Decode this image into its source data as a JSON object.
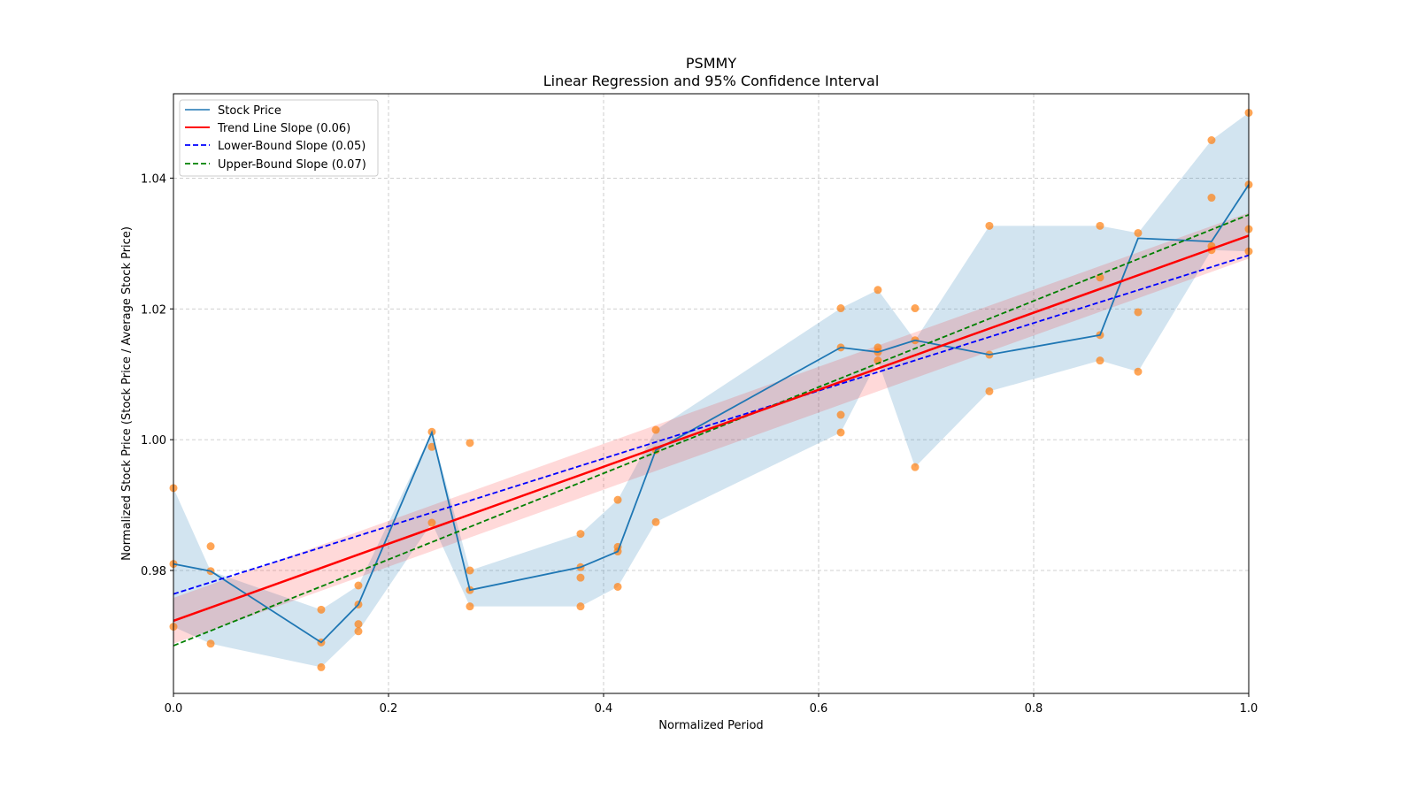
{
  "chart_data": {
    "type": "line",
    "title": "PSMMY",
    "subtitle": "Linear Regression and 95% Confidence Interval",
    "xlabel": "Normalized Period",
    "ylabel": "Normalized Stock Price (Stock Price / Average Stock Price)",
    "xlim": [
      0.0,
      1.0
    ],
    "ylim": [
      0.9612,
      1.0529
    ],
    "xticks": [
      0.0,
      0.2,
      0.4,
      0.6,
      0.8,
      1.0
    ],
    "xtick_labels": [
      "0.0",
      "0.2",
      "0.4",
      "0.6",
      "0.8",
      "1.0"
    ],
    "yticks": [
      0.98,
      1.0,
      1.02,
      1.04
    ],
    "ytick_labels": [
      "0.98",
      "1.00",
      "1.02",
      "1.04"
    ],
    "grid": true,
    "legend_position": "top-left",
    "legend": [
      {
        "label": "Stock Price",
        "color": "#1f77b4",
        "style": "solid"
      },
      {
        "label": "Trend Line Slope (0.06)",
        "color": "#ff0000",
        "style": "solid"
      },
      {
        "label": "Lower-Bound Slope (0.05)",
        "color": "#0000ff",
        "style": "dashed"
      },
      {
        "label": "Upper-Bound Slope (0.07)",
        "color": "#008000",
        "style": "dashed"
      }
    ],
    "stock_price": {
      "x": [
        0.0,
        0.0346,
        0.1374,
        0.172,
        0.2403,
        0.2757,
        0.3786,
        0.4132,
        0.4486,
        0.6206,
        0.6551,
        0.6897,
        0.7588,
        0.8617,
        0.8971,
        0.9654,
        1.0
      ],
      "y": [
        0.981,
        0.9799,
        0.969,
        0.9748,
        1.0011,
        0.977,
        0.9805,
        0.9829,
        0.9984,
        1.0141,
        1.0134,
        1.0152,
        1.013,
        1.016,
        1.0308,
        1.0303,
        1.039
      ],
      "band_low": [
        0.9714,
        0.9688,
        0.9652,
        0.9707,
        0.9873,
        0.9745,
        0.9745,
        0.9775,
        0.9874,
        1.0011,
        1.0121,
        0.9958,
        1.0074,
        1.0121,
        1.0104,
        1.029,
        1.0288
      ],
      "band_high": [
        0.9926,
        0.9799,
        0.974,
        0.9777,
        1.0012,
        0.98,
        0.9856,
        0.9908,
        1.0015,
        1.0201,
        1.0229,
        1.0152,
        1.0327,
        1.0327,
        1.0316,
        1.0458,
        1.05
      ]
    },
    "scatter_points": {
      "x": [
        0.0,
        0.0,
        0.0,
        0.0346,
        0.0346,
        0.0346,
        0.1374,
        0.1374,
        0.1374,
        0.172,
        0.172,
        0.172,
        0.172,
        0.2403,
        0.2403,
        0.2403,
        0.2757,
        0.2757,
        0.2757,
        0.2757,
        0.3786,
        0.3786,
        0.3786,
        0.3786,
        0.4132,
        0.4132,
        0.4132,
        0.4132,
        0.4486,
        0.4486,
        0.4486,
        0.6206,
        0.6206,
        0.6206,
        0.6206,
        0.6551,
        0.6551,
        0.6551,
        0.6551,
        0.6897,
        0.6897,
        0.6897,
        0.7588,
        0.7588,
        0.7588,
        0.8617,
        0.8617,
        0.8617,
        0.8617,
        0.8971,
        0.8971,
        0.8971,
        0.9654,
        0.9654,
        0.9654,
        0.9654,
        1.0,
        1.0,
        1.0,
        1.0
      ],
      "y": [
        0.9926,
        0.981,
        0.9714,
        0.9837,
        0.9799,
        0.9688,
        0.974,
        0.969,
        0.9652,
        0.9777,
        0.9748,
        0.9718,
        0.9707,
        1.0012,
        0.9989,
        0.9873,
        0.9995,
        0.98,
        0.977,
        0.9745,
        0.9856,
        0.9805,
        0.9789,
        0.9745,
        0.9908,
        0.9836,
        0.9829,
        0.9775,
        1.0015,
        0.9984,
        0.9874,
        1.0201,
        1.0141,
        1.0038,
        1.0011,
        1.0229,
        1.0141,
        1.0134,
        1.0121,
        1.0201,
        1.0152,
        0.9958,
        1.0327,
        1.013,
        1.0074,
        1.0327,
        1.0248,
        1.016,
        1.0121,
        1.0316,
        1.0195,
        1.0104,
        1.0458,
        1.037,
        1.0296,
        1.029,
        1.05,
        1.039,
        1.0322,
        1.0288
      ]
    },
    "trend_line": {
      "x": [
        0.0,
        1.0
      ],
      "y": [
        0.9723,
        1.0312
      ],
      "ci_half_width": 0.0035,
      "slope_label": "0.06"
    },
    "lower_bound_line": {
      "x": [
        0.0,
        1.0
      ],
      "y": [
        0.9764,
        1.0282
      ],
      "slope_label": "0.05"
    },
    "upper_bound_line": {
      "x": [
        0.0,
        1.0
      ],
      "y": [
        0.9685,
        1.0344
      ],
      "slope_label": "0.07"
    },
    "colors": {
      "stock": "#1f77b4",
      "stock_band": "#1f77b4",
      "points": "#ff7f0e",
      "trend": "#ff0000",
      "lower": "#0000ff",
      "upper": "#008000",
      "grid": "#b0b0b0"
    }
  }
}
